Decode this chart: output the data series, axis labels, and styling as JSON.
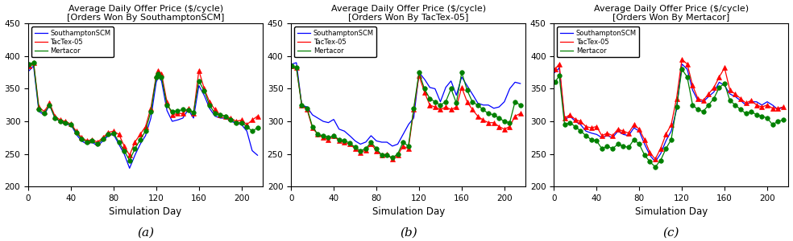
{
  "titles": [
    "Average Daily Offer Price ($/cycle)\n[Orders Won By SouthamptonSCM]",
    "Average Daily Offer Price ($/cycle)\n[Orders Won By TacTex-05]",
    "Average Daily Offer Price ($/cycle)\n[Orders Won By Mertacor]"
  ],
  "subtitles": [
    "(a)",
    "(b)",
    "(c)"
  ],
  "xlabel": "Simulation Day",
  "ylim": [
    200,
    450
  ],
  "xlim": [
    0,
    220
  ],
  "yticks": [
    200,
    250,
    300,
    350,
    400,
    450
  ],
  "xticks": [
    0,
    40,
    80,
    120,
    160,
    200
  ],
  "legend_labels": [
    "SouthamptonSCM",
    "TacTex-05",
    "Mertacor"
  ],
  "colors": [
    "blue",
    "red",
    "green"
  ],
  "panel_a": {
    "southampton_x": [
      1,
      5,
      10,
      15,
      20,
      25,
      30,
      35,
      40,
      45,
      50,
      55,
      60,
      65,
      70,
      75,
      80,
      85,
      90,
      95,
      100,
      105,
      110,
      115,
      120,
      122,
      125,
      130,
      135,
      140,
      145,
      150,
      155,
      160,
      165,
      170,
      175,
      180,
      185,
      190,
      195,
      200,
      205,
      210,
      215
    ],
    "southampton_y": [
      378,
      385,
      315,
      310,
      325,
      305,
      300,
      295,
      295,
      280,
      270,
      265,
      268,
      262,
      270,
      278,
      280,
      265,
      250,
      228,
      248,
      265,
      278,
      305,
      360,
      368,
      362,
      317,
      300,
      302,
      305,
      318,
      305,
      355,
      340,
      320,
      308,
      305,
      305,
      300,
      297,
      295,
      285,
      255,
      248
    ],
    "tactex_x": [
      1,
      5,
      10,
      15,
      20,
      25,
      30,
      35,
      40,
      45,
      50,
      55,
      60,
      65,
      70,
      75,
      80,
      85,
      90,
      95,
      100,
      105,
      110,
      115,
      120,
      122,
      125,
      130,
      135,
      140,
      145,
      150,
      155,
      160,
      165,
      170,
      175,
      180,
      185,
      190,
      195,
      200,
      205,
      210,
      215
    ],
    "tactex_y": [
      385,
      390,
      322,
      315,
      328,
      308,
      302,
      300,
      296,
      285,
      275,
      270,
      272,
      268,
      275,
      283,
      285,
      280,
      262,
      248,
      268,
      280,
      292,
      320,
      370,
      378,
      373,
      330,
      310,
      312,
      312,
      320,
      312,
      378,
      350,
      330,
      318,
      310,
      308,
      305,
      300,
      302,
      295,
      302,
      308
    ],
    "mertacor_x": [
      1,
      5,
      10,
      15,
      20,
      25,
      30,
      35,
      40,
      45,
      50,
      55,
      60,
      65,
      70,
      75,
      80,
      85,
      90,
      95,
      100,
      105,
      110,
      115,
      120,
      122,
      125,
      130,
      135,
      140,
      145,
      150,
      155,
      160,
      165,
      170,
      175,
      180,
      185,
      190,
      195,
      200,
      205,
      210,
      215
    ],
    "mertacor_y": [
      388,
      390,
      318,
      312,
      325,
      305,
      300,
      298,
      295,
      283,
      273,
      268,
      270,
      265,
      273,
      280,
      282,
      268,
      255,
      240,
      258,
      272,
      285,
      315,
      368,
      373,
      368,
      325,
      315,
      316,
      318,
      317,
      314,
      362,
      347,
      325,
      312,
      310,
      308,
      302,
      298,
      298,
      292,
      285,
      290
    ]
  },
  "panel_b": {
    "southampton_x": [
      1,
      5,
      10,
      15,
      20,
      25,
      30,
      35,
      40,
      45,
      50,
      55,
      60,
      65,
      70,
      75,
      80,
      85,
      90,
      95,
      100,
      105,
      110,
      115,
      120,
      125,
      130,
      135,
      140,
      145,
      150,
      155,
      160,
      165,
      170,
      175,
      180,
      185,
      190,
      195,
      200,
      205,
      210,
      215
    ],
    "southampton_y": [
      388,
      390,
      325,
      322,
      310,
      305,
      300,
      298,
      303,
      288,
      285,
      278,
      270,
      265,
      268,
      278,
      270,
      268,
      268,
      262,
      265,
      280,
      295,
      305,
      375,
      365,
      352,
      350,
      330,
      352,
      362,
      340,
      368,
      355,
      342,
      328,
      325,
      325,
      320,
      322,
      330,
      350,
      360,
      358
    ],
    "tactex_x": [
      1,
      5,
      10,
      15,
      20,
      25,
      30,
      35,
      40,
      45,
      50,
      55,
      60,
      65,
      70,
      75,
      80,
      85,
      90,
      95,
      100,
      105,
      110,
      115,
      120,
      125,
      130,
      135,
      140,
      145,
      150,
      155,
      160,
      165,
      170,
      175,
      180,
      185,
      190,
      195,
      200,
      205,
      210,
      215
    ],
    "tactex_y": [
      385,
      382,
      325,
      318,
      290,
      280,
      275,
      272,
      278,
      270,
      268,
      265,
      258,
      252,
      256,
      265,
      255,
      248,
      250,
      242,
      248,
      262,
      258,
      318,
      370,
      345,
      325,
      322,
      318,
      322,
      318,
      322,
      352,
      330,
      318,
      308,
      302,
      298,
      298,
      292,
      288,
      292,
      308,
      312
    ],
    "mertacor_x": [
      1,
      5,
      10,
      15,
      20,
      25,
      30,
      35,
      40,
      45,
      50,
      55,
      60,
      65,
      70,
      75,
      80,
      85,
      90,
      95,
      100,
      105,
      110,
      115,
      120,
      125,
      130,
      135,
      140,
      145,
      150,
      155,
      160,
      165,
      170,
      175,
      180,
      185,
      190,
      195,
      200,
      205,
      210,
      215
    ],
    "mertacor_y": [
      385,
      382,
      325,
      320,
      292,
      280,
      278,
      275,
      278,
      272,
      270,
      267,
      260,
      255,
      258,
      268,
      258,
      248,
      248,
      244,
      250,
      268,
      262,
      320,
      375,
      350,
      335,
      330,
      325,
      330,
      350,
      328,
      375,
      348,
      330,
      325,
      318,
      312,
      310,
      305,
      300,
      298,
      330,
      325
    ]
  },
  "panel_c": {
    "southampton_x": [
      1,
      5,
      10,
      15,
      20,
      25,
      30,
      35,
      40,
      45,
      50,
      55,
      60,
      65,
      70,
      75,
      80,
      85,
      90,
      95,
      100,
      105,
      110,
      115,
      120,
      125,
      130,
      135,
      140,
      145,
      150,
      155,
      160,
      165,
      170,
      175,
      180,
      185,
      190,
      195,
      200,
      205,
      210,
      215
    ],
    "southampton_y": [
      375,
      382,
      302,
      308,
      300,
      295,
      285,
      282,
      280,
      275,
      278,
      275,
      285,
      280,
      278,
      290,
      285,
      265,
      248,
      238,
      250,
      270,
      285,
      318,
      388,
      380,
      348,
      332,
      330,
      338,
      345,
      360,
      355,
      342,
      338,
      332,
      325,
      330,
      330,
      325,
      330,
      325,
      318,
      322
    ],
    "tactex_x": [
      1,
      5,
      10,
      15,
      20,
      25,
      30,
      35,
      40,
      45,
      50,
      55,
      60,
      65,
      70,
      75,
      80,
      85,
      90,
      95,
      100,
      105,
      110,
      115,
      120,
      125,
      130,
      135,
      140,
      145,
      150,
      155,
      160,
      165,
      170,
      175,
      180,
      185,
      190,
      195,
      200,
      205,
      210,
      215
    ],
    "tactex_y": [
      380,
      388,
      305,
      310,
      303,
      300,
      292,
      290,
      292,
      278,
      282,
      278,
      288,
      285,
      282,
      295,
      288,
      272,
      252,
      242,
      258,
      280,
      295,
      335,
      395,
      388,
      355,
      335,
      332,
      342,
      352,
      368,
      382,
      348,
      342,
      335,
      328,
      332,
      325,
      322,
      325,
      320,
      320,
      322
    ],
    "mertacor_x": [
      1,
      5,
      10,
      15,
      20,
      25,
      30,
      35,
      40,
      45,
      50,
      55,
      60,
      65,
      70,
      75,
      80,
      85,
      90,
      95,
      100,
      105,
      110,
      115,
      120,
      125,
      130,
      135,
      140,
      145,
      150,
      155,
      160,
      165,
      170,
      175,
      180,
      185,
      190,
      195,
      200,
      205,
      210,
      215
    ],
    "mertacor_y": [
      360,
      370,
      295,
      298,
      292,
      285,
      278,
      272,
      270,
      258,
      262,
      258,
      265,
      262,
      260,
      272,
      265,
      248,
      238,
      230,
      240,
      258,
      272,
      322,
      380,
      368,
      325,
      318,
      315,
      325,
      335,
      352,
      358,
      332,
      325,
      318,
      312,
      315,
      310,
      308,
      305,
      295,
      300,
      302
    ]
  }
}
